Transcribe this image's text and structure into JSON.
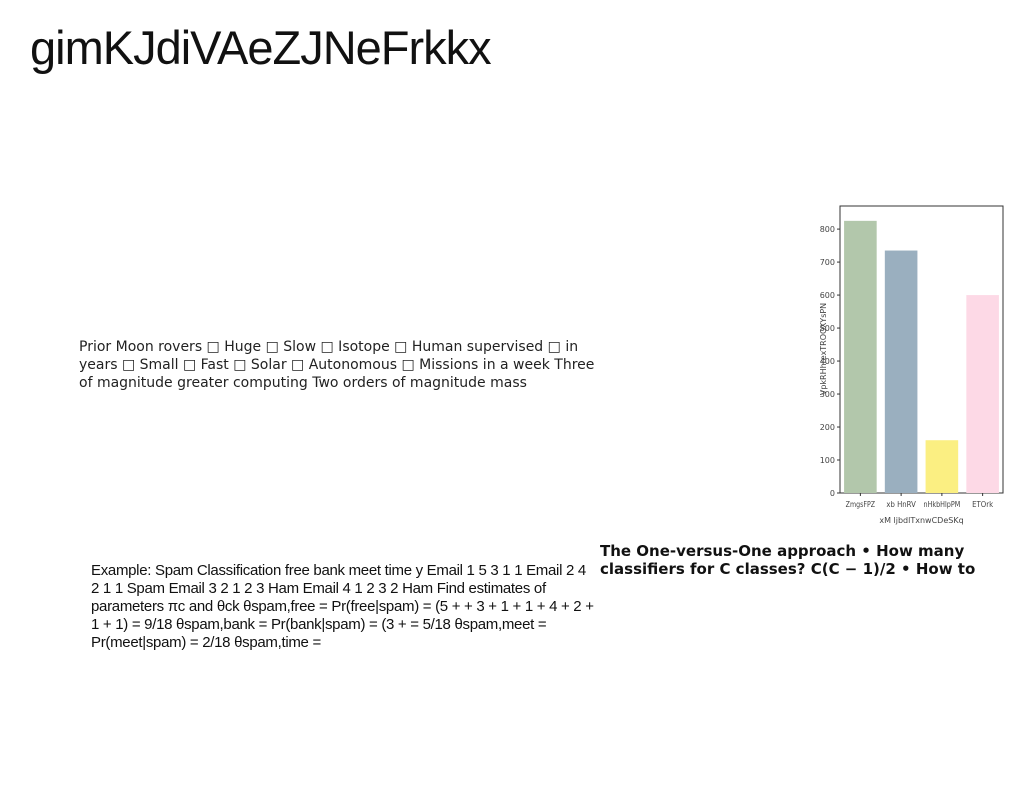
{
  "page": {
    "title": "gimKJdiVAeZJNeFrkkx"
  },
  "moon_text": "Prior Moon rovers □ Huge □ Slow □ Isotope □ Human supervised □ in years □ Small □ Fast □ Solar □ Autonomous □ Missions in a week Three of magnitude greater computing Two orders of magnitude mass",
  "spam_text": "Example: Spam Classification free bank meet time y Email 1 5 3 1 1 Email 2 4 2 1 1 Spam Email 3 2 1 2 3 Ham Email 4 1 2 3 2 Ham Find estimates of parameters πc and θck θspam,free = Pr(free|spam) = (5 + + 3 + 1 + 1 + 4 + 2 + 1 + 1) = 9/18 θspam,bank = Pr(bank|spam) = (3 + = 5/18 θspam,meet = Pr(meet|spam) = 2/18 θspam,time =",
  "ovo_text": {
    "line1": "The One-versus-One approach • How many",
    "line2": "classifiers for C classes? C(C − 1)/2 • How to"
  },
  "chart_data": {
    "type": "bar",
    "categories": [
      "ZmgsFPZ",
      "xb HnRV",
      "nHkbHlpPM",
      "ETOrk"
    ],
    "values": [
      825,
      735,
      160,
      600
    ],
    "colors": [
      "#b2c7ab",
      "#9aafbf",
      "#fbef82",
      "#fdd9e6"
    ],
    "xlabel": "xM ljbdlTxnwCDeSKq",
    "ylabel": "VpkRHhrexTROOXYsPN",
    "ylim": [
      0,
      870
    ],
    "yticks": [
      0,
      100,
      200,
      300,
      400,
      500,
      600,
      700,
      800
    ],
    "grid": false
  }
}
